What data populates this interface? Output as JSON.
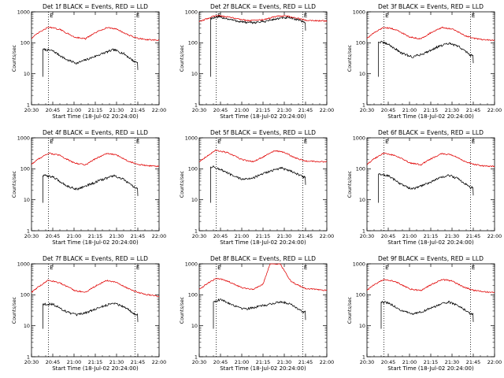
{
  "chart_data": [
    {
      "type": "line",
      "title": "Det 1f BLACK = Events, RED = LLD",
      "xlabel": "Start Time (18-Jul-02 20:24:00)",
      "ylabel": "Counts/sec",
      "yscale": "log",
      "ylim": [
        1,
        1000
      ],
      "xlim": [
        "20:30",
        "22:00"
      ],
      "xticks": [
        "20:30",
        "20:45",
        "21:00",
        "21:15",
        "21:30",
        "21:45",
        "22:00"
      ],
      "yticks": [
        "1",
        "10",
        "100",
        "1000"
      ],
      "markers": [
        {
          "x": "20:42",
          "label": "E"
        },
        {
          "x": "21:43",
          "label": "E"
        }
      ],
      "series": [
        {
          "name": "Events",
          "color": "#000000",
          "start": "20:38",
          "end": "21:45",
          "x": [
            "20:40",
            "20:45",
            "20:55",
            "21:02",
            "21:10",
            "21:20",
            "21:28",
            "21:35",
            "21:43"
          ],
          "y": [
            60,
            55,
            28,
            22,
            30,
            45,
            60,
            45,
            24
          ]
        },
        {
          "name": "LLD",
          "color": "#e00000",
          "start": "20:30",
          "end": "22:00",
          "x": [
            "20:30",
            "20:35",
            "20:42",
            "20:50",
            "21:00",
            "21:08",
            "21:15",
            "21:23",
            "21:30",
            "21:38",
            "21:45",
            "21:52",
            "22:00"
          ],
          "y": [
            140,
            210,
            320,
            270,
            155,
            135,
            210,
            310,
            280,
            180,
            140,
            125,
            120
          ]
        }
      ]
    },
    {
      "type": "line",
      "title": "Det 2f BLACK = Events, RED = LLD",
      "xlabel": "Start Time (18-Jul-02 20:24:00)",
      "ylabel": "Counts/sec",
      "yscale": "log",
      "ylim": [
        1,
        1000
      ],
      "xlim": [
        "20:30",
        "22:00"
      ],
      "xticks": [
        "20:30",
        "20:45",
        "21:00",
        "21:15",
        "21:30",
        "21:45",
        "22:00"
      ],
      "yticks": [
        "1",
        "10",
        "100",
        "1000"
      ],
      "markers": [
        {
          "x": "20:42",
          "label": "E"
        },
        {
          "x": "21:43",
          "label": "E"
        }
      ],
      "series": [
        {
          "name": "Events",
          "color": "#000000",
          "start": "20:38",
          "end": "21:45",
          "x": [
            "20:38",
            "20:45",
            "20:55",
            "21:05",
            "21:15",
            "21:25",
            "21:32",
            "21:40",
            "21:45"
          ],
          "y": [
            620,
            680,
            520,
            440,
            480,
            600,
            650,
            560,
            450
          ]
        },
        {
          "name": "LLD",
          "color": "#e00000",
          "start": "20:30",
          "end": "22:00",
          "x": [
            "20:30",
            "20:42",
            "20:55",
            "21:05",
            "21:15",
            "21:25",
            "21:32",
            "21:45",
            "22:00"
          ],
          "y": [
            480,
            780,
            620,
            520,
            560,
            720,
            730,
            540,
            500
          ]
        }
      ]
    },
    {
      "type": "line",
      "title": "Det 3f BLACK = Events, RED = LLD",
      "xlabel": "Start Time (18-Jul-02 20:24:00)",
      "ylabel": "Counts/sec",
      "yscale": "log",
      "ylim": [
        1,
        1000
      ],
      "xlim": [
        "20:30",
        "22:00"
      ],
      "xticks": [
        "20:30",
        "20:45",
        "21:00",
        "21:15",
        "21:30",
        "21:45",
        "22:00"
      ],
      "yticks": [
        "1",
        "10",
        "100",
        "1000"
      ],
      "markers": [
        {
          "x": "20:42",
          "label": "E"
        },
        {
          "x": "21:43",
          "label": "E"
        }
      ],
      "series": [
        {
          "name": "Events",
          "color": "#000000",
          "start": "20:38",
          "end": "21:45",
          "x": [
            "20:40",
            "20:45",
            "20:55",
            "21:02",
            "21:10",
            "21:20",
            "21:28",
            "21:35",
            "21:43"
          ],
          "y": [
            105,
            90,
            45,
            35,
            45,
            75,
            95,
            75,
            40
          ]
        },
        {
          "name": "LLD",
          "color": "#e00000",
          "start": "20:30",
          "end": "22:00",
          "x": [
            "20:30",
            "20:35",
            "20:42",
            "20:50",
            "21:00",
            "21:08",
            "21:15",
            "21:23",
            "21:30",
            "21:38",
            "21:45",
            "21:52",
            "22:00"
          ],
          "y": [
            140,
            210,
            320,
            270,
            155,
            135,
            210,
            310,
            280,
            180,
            140,
            125,
            120
          ]
        }
      ]
    },
    {
      "type": "line",
      "title": "Det 4f BLACK = Events, RED = LLD",
      "xlabel": "Start Time (18-Jul-02 20:24:00)",
      "ylabel": "Counts/sec",
      "yscale": "log",
      "ylim": [
        1,
        1000
      ],
      "xlim": [
        "20:30",
        "22:00"
      ],
      "xticks": [
        "20:30",
        "20:45",
        "21:00",
        "21:15",
        "21:30",
        "21:45",
        "22:00"
      ],
      "yticks": [
        "1",
        "10",
        "100",
        "1000"
      ],
      "markers": [
        {
          "x": "20:42",
          "label": "E"
        },
        {
          "x": "21:43",
          "label": "E"
        }
      ],
      "series": [
        {
          "name": "Events",
          "color": "#000000",
          "start": "20:38",
          "end": "21:45",
          "x": [
            "20:40",
            "20:45",
            "20:55",
            "21:02",
            "21:10",
            "21:20",
            "21:28",
            "21:35",
            "21:43"
          ],
          "y": [
            60,
            55,
            28,
            22,
            30,
            45,
            60,
            45,
            24
          ]
        },
        {
          "name": "LLD",
          "color": "#e00000",
          "start": "20:30",
          "end": "22:00",
          "x": [
            "20:30",
            "20:35",
            "20:42",
            "20:50",
            "21:00",
            "21:08",
            "21:15",
            "21:23",
            "21:30",
            "21:38",
            "21:45",
            "21:52",
            "22:00"
          ],
          "y": [
            140,
            210,
            320,
            270,
            155,
            135,
            210,
            310,
            280,
            180,
            140,
            125,
            120
          ]
        }
      ]
    },
    {
      "type": "line",
      "title": "Det 5f BLACK = Events, RED = LLD",
      "xlabel": "Start Time (18-Jul-02 20:24:00)",
      "ylabel": "Counts/sec",
      "yscale": "log",
      "ylim": [
        1,
        1000
      ],
      "xlim": [
        "20:30",
        "22:00"
      ],
      "xticks": [
        "20:30",
        "20:45",
        "21:00",
        "21:15",
        "21:30",
        "21:45",
        "22:00"
      ],
      "yticks": [
        "1",
        "10",
        "100",
        "1000"
      ],
      "markers": [
        {
          "x": "20:42",
          "label": "E"
        },
        {
          "x": "21:43",
          "label": "E"
        }
      ],
      "series": [
        {
          "name": "Events",
          "color": "#000000",
          "start": "20:38",
          "end": "21:45",
          "x": [
            "20:40",
            "20:45",
            "20:55",
            "21:02",
            "21:10",
            "21:20",
            "21:28",
            "21:35",
            "21:43"
          ],
          "y": [
            115,
            95,
            55,
            45,
            55,
            85,
            105,
            85,
            55
          ]
        },
        {
          "name": "LLD",
          "color": "#e00000",
          "start": "20:30",
          "end": "22:00",
          "x": [
            "20:30",
            "20:35",
            "20:42",
            "20:50",
            "21:00",
            "21:08",
            "21:15",
            "21:23",
            "21:30",
            "21:38",
            "21:45",
            "21:52",
            "22:00"
          ],
          "y": [
            170,
            250,
            400,
            330,
            200,
            170,
            240,
            380,
            340,
            220,
            180,
            170,
            170
          ]
        }
      ]
    },
    {
      "type": "line",
      "title": "Det 6f BLACK = Events, RED = LLD",
      "xlabel": "Start Time (18-Jul-02 20:24:00)",
      "ylabel": "Counts/sec",
      "yscale": "log",
      "ylim": [
        1,
        1000
      ],
      "xlim": [
        "20:30",
        "22:00"
      ],
      "xticks": [
        "20:30",
        "20:45",
        "21:00",
        "21:15",
        "21:30",
        "21:45",
        "22:00"
      ],
      "yticks": [
        "1",
        "10",
        "100",
        "1000"
      ],
      "markers": [
        {
          "x": "20:42",
          "label": "E"
        },
        {
          "x": "21:43",
          "label": "E"
        }
      ],
      "series": [
        {
          "name": "Events",
          "color": "#000000",
          "start": "20:38",
          "end": "21:45",
          "x": [
            "20:40",
            "20:45",
            "20:55",
            "21:02",
            "21:10",
            "21:20",
            "21:28",
            "21:35",
            "21:43"
          ],
          "y": [
            65,
            60,
            30,
            22,
            30,
            48,
            62,
            46,
            25
          ]
        },
        {
          "name": "LLD",
          "color": "#e00000",
          "start": "20:30",
          "end": "22:00",
          "x": [
            "20:30",
            "20:35",
            "20:42",
            "20:50",
            "21:00",
            "21:08",
            "21:15",
            "21:23",
            "21:30",
            "21:38",
            "21:45",
            "21:52",
            "22:00"
          ],
          "y": [
            140,
            210,
            320,
            270,
            155,
            135,
            210,
            310,
            280,
            180,
            140,
            125,
            120
          ]
        }
      ]
    },
    {
      "type": "line",
      "title": "Det 7f BLACK = Events, RED = LLD",
      "xlabel": "Start Time (18-Jul-02 20:24:00)",
      "ylabel": "Counts/sec",
      "yscale": "log",
      "ylim": [
        1,
        1000
      ],
      "xlim": [
        "20:30",
        "22:00"
      ],
      "xticks": [
        "20:30",
        "20:45",
        "21:00",
        "21:15",
        "21:30",
        "21:45",
        "22:00"
      ],
      "yticks": [
        "1",
        "10",
        "100",
        "1000"
      ],
      "markers": [
        {
          "x": "20:42",
          "label": "E"
        },
        {
          "x": "21:43",
          "label": "E"
        }
      ],
      "series": [
        {
          "name": "Events",
          "color": "#000000",
          "start": "20:38",
          "end": "21:45",
          "x": [
            "20:40",
            "20:45",
            "20:55",
            "21:02",
            "21:10",
            "21:20",
            "21:28",
            "21:35",
            "21:43"
          ],
          "y": [
            50,
            50,
            28,
            22,
            28,
            42,
            55,
            42,
            24
          ]
        },
        {
          "name": "LLD",
          "color": "#e00000",
          "start": "20:30",
          "end": "22:00",
          "x": [
            "20:30",
            "20:35",
            "20:42",
            "20:50",
            "21:00",
            "21:08",
            "21:15",
            "21:23",
            "21:30",
            "21:38",
            "21:45",
            "21:52",
            "22:00"
          ],
          "y": [
            120,
            180,
            300,
            240,
            140,
            120,
            190,
            290,
            250,
            160,
            120,
            100,
            90
          ]
        }
      ]
    },
    {
      "type": "line",
      "title": "Det 8f BLACK = Events, RED = LLD",
      "xlabel": "Start Time (18-Jul-02 20:24:00)",
      "ylabel": "Counts/sec",
      "yscale": "log",
      "ylim": [
        1,
        1000
      ],
      "xlim": [
        "20:30",
        "22:00"
      ],
      "xticks": [
        "20:30",
        "20:45",
        "21:00",
        "21:15",
        "21:30",
        "21:45",
        "22:00"
      ],
      "yticks": [
        "1",
        "10",
        "100",
        "1000"
      ],
      "markers": [
        {
          "x": "20:42",
          "label": "E"
        },
        {
          "x": "21:43",
          "label": "E"
        }
      ],
      "series": [
        {
          "name": "Events",
          "color": "#000000",
          "start": "20:40",
          "end": "21:45",
          "x": [
            "20:40",
            "20:45",
            "20:55",
            "21:02",
            "21:10",
            "21:20",
            "21:28",
            "21:35",
            "21:43"
          ],
          "y": [
            60,
            70,
            45,
            35,
            40,
            50,
            60,
            50,
            28
          ]
        },
        {
          "name": "LLD",
          "color": "#e00000",
          "start": "20:30",
          "end": "22:00",
          "x": [
            "20:30",
            "20:35",
            "20:42",
            "20:50",
            "21:00",
            "21:08",
            "21:15",
            "21:20",
            "21:27",
            "21:35",
            "21:45",
            "21:52",
            "22:00"
          ],
          "y": [
            150,
            220,
            340,
            280,
            170,
            150,
            220,
            1000,
            1000,
            260,
            160,
            150,
            140
          ]
        }
      ]
    },
    {
      "type": "line",
      "title": "Det 9f BLACK = Events, RED = LLD",
      "xlabel": "Start Time (18-Jul-02 20:24:00)",
      "ylabel": "Counts/sec",
      "yscale": "log",
      "ylim": [
        1,
        1000
      ],
      "xlim": [
        "20:30",
        "22:00"
      ],
      "xticks": [
        "20:30",
        "20:45",
        "21:00",
        "21:15",
        "21:30",
        "21:45",
        "22:00"
      ],
      "yticks": [
        "1",
        "10",
        "100",
        "1000"
      ],
      "markers": [
        {
          "x": "20:42",
          "label": "E"
        },
        {
          "x": "21:43",
          "label": "E"
        }
      ],
      "series": [
        {
          "name": "Events",
          "color": "#000000",
          "start": "20:40",
          "end": "21:45",
          "x": [
            "20:40",
            "20:45",
            "20:55",
            "21:02",
            "21:10",
            "21:20",
            "21:28",
            "21:35",
            "21:43"
          ],
          "y": [
            58,
            55,
            30,
            24,
            30,
            46,
            58,
            44,
            24
          ]
        },
        {
          "name": "LLD",
          "color": "#e00000",
          "start": "20:30",
          "end": "22:00",
          "x": [
            "20:30",
            "20:35",
            "20:42",
            "20:50",
            "21:00",
            "21:08",
            "21:15",
            "21:23",
            "21:30",
            "21:38",
            "21:45",
            "21:52",
            "22:00"
          ],
          "y": [
            140,
            210,
            320,
            270,
            155,
            135,
            210,
            310,
            280,
            180,
            140,
            125,
            120
          ]
        }
      ]
    }
  ]
}
